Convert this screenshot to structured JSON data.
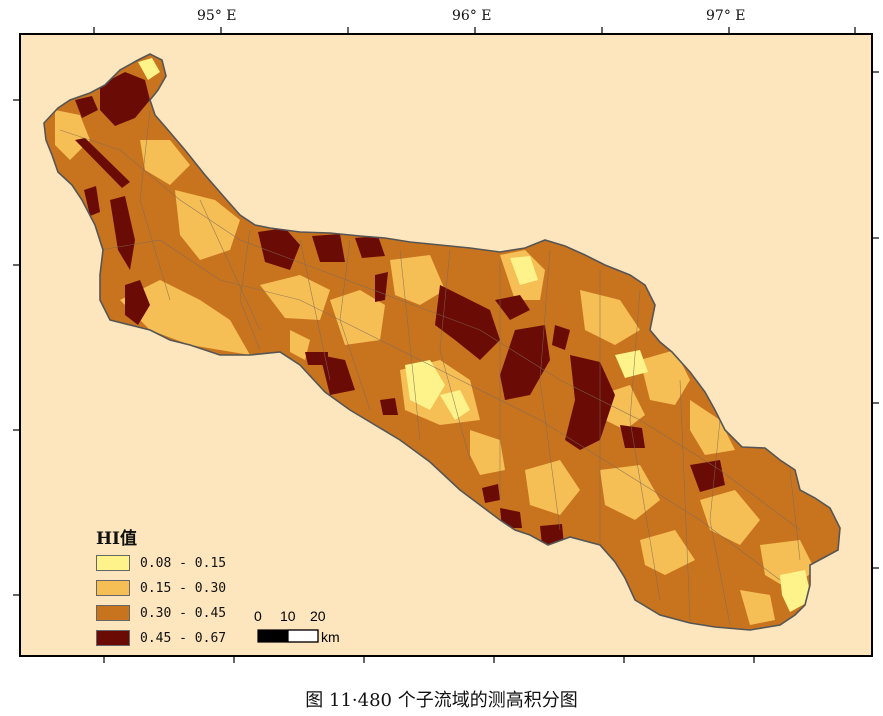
{
  "top_axis_labels": [
    "95° E",
    "96° E",
    "97° E"
  ],
  "legend": {
    "title": "HI值",
    "classes": [
      {
        "label": "0.08 - 0.15",
        "color": "#fdf38a"
      },
      {
        "label": "0.15 - 0.30",
        "color": "#f6bf55"
      },
      {
        "label": "0.30 - 0.45",
        "color": "#c8741f"
      },
      {
        "label": "0.45 - 0.67",
        "color": "#6b0b06"
      }
    ]
  },
  "scale_bar": {
    "ticks": [
      "0",
      "10",
      "20"
    ],
    "unit": "km"
  },
  "background_color": "#fde6bd",
  "caption": "图 11·480 个子流域的测高积分图"
}
